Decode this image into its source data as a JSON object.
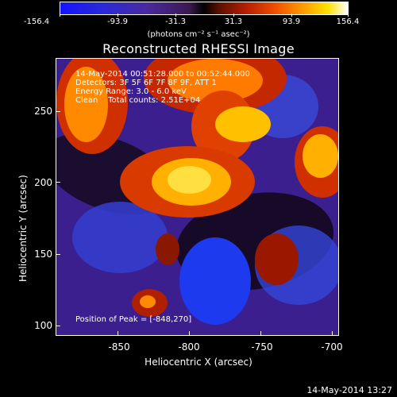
{
  "colorbar": {
    "ticks": [
      "-156.4",
      "-93.9",
      "-31.3",
      "31.3",
      "93.9",
      "156.4"
    ],
    "units": "(photons cm⁻² s⁻¹ asec⁻²)"
  },
  "title": "Reconstructed RHESSI Image",
  "info": {
    "line1": "14-May-2014 00:51:28.000 to 00:52:44.000",
    "line2": "Detectors: 3F 5F 6F 7F 8F 9F, ATT 1",
    "line3": "Energy Range: 3.0 - 6.0 keV",
    "line4": "Clean    Total counts: 2.51E+04",
    "peak": "Position of Peak = [-848,270]"
  },
  "axes": {
    "xlabel": "Heliocentric X (arcsec)",
    "ylabel": "Heliocentric Y (arcsec)",
    "xticks": [
      "-850",
      "-800",
      "-750",
      "-700"
    ],
    "yticks": [
      "250",
      "200",
      "150",
      "100"
    ]
  },
  "timestamp": "14-May-2014 13:27"
}
